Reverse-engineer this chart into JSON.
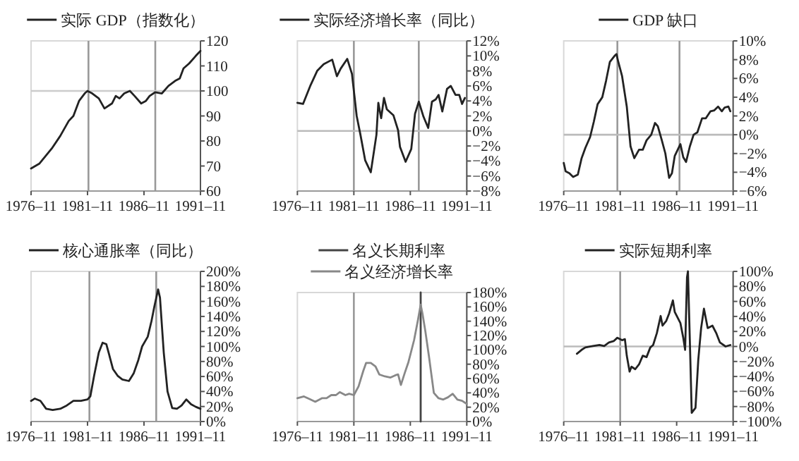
{
  "chart_data": [
    {
      "type": "line",
      "legend": "top",
      "xlim": [
        "1976-11",
        "1991-11"
      ],
      "ylim": [
        60,
        120
      ],
      "xticks": [
        {
          "value": "1976-11",
          "label": "1976–11"
        },
        {
          "value": "1981-11",
          "label": "1981–11"
        },
        {
          "value": "1986-11",
          "label": "1986–11"
        },
        {
          "value": "1991-11",
          "label": "1991–11"
        }
      ],
      "yticks": [
        60,
        70,
        80,
        90,
        100,
        110,
        120
      ],
      "ref_lines": [
        {
          "axis": "x",
          "value": "1981-12",
          "color": "#999999"
        },
        {
          "axis": "x",
          "value": "1987-11",
          "color": "#999999"
        },
        {
          "axis": "y",
          "value": 100,
          "color": "#cccccc"
        }
      ],
      "series": [
        {
          "name": "实际 GDP（指数化）",
          "color": "#222222",
          "x": [
            "1976-11",
            "1977-08",
            "1978-09",
            "1979-06",
            "1980-03",
            "1980-08",
            "1981-02",
            "1981-08",
            "1981-11",
            "1982-04",
            "1982-11",
            "1983-05",
            "1984-01",
            "1984-05",
            "1984-09",
            "1985-02",
            "1985-08",
            "1986-01",
            "1986-08",
            "1987-01",
            "1987-05",
            "1987-11",
            "1988-06",
            "1989-01",
            "1989-08",
            "1990-01",
            "1990-05",
            "1990-11",
            "1991-06",
            "1991-11"
          ],
          "values": [
            69,
            71,
            77,
            82,
            88,
            90,
            96,
            99,
            100,
            99,
            97,
            93,
            95,
            98,
            97,
            99,
            100,
            98,
            95,
            96,
            98,
            99.5,
            99,
            102,
            104,
            105,
            109,
            111,
            114,
            116
          ]
        }
      ]
    },
    {
      "type": "line",
      "legend": "top",
      "xlim": [
        "1976-11",
        "1991-11"
      ],
      "ylim": [
        -8,
        12
      ],
      "xticks": [
        {
          "value": "1976-11",
          "label": "1976–11"
        },
        {
          "value": "1981-11",
          "label": "1981–11"
        },
        {
          "value": "1986-11",
          "label": "1986–11"
        },
        {
          "value": "1991-11",
          "label": "1991–11"
        }
      ],
      "yticks": [
        {
          "value": 12,
          "label": "12%"
        },
        {
          "value": 10,
          "label": "10%"
        },
        {
          "value": 8,
          "label": "8%"
        },
        {
          "value": 6,
          "label": "6%"
        },
        {
          "value": 4,
          "label": "4%"
        },
        {
          "value": 2,
          "label": "2%"
        },
        {
          "value": 0,
          "label": "0%"
        },
        {
          "value": -2,
          "label": "−2%"
        },
        {
          "value": -4,
          "label": "−4%"
        },
        {
          "value": -6,
          "label": "−6%"
        },
        {
          "value": -8,
          "label": "−8%"
        }
      ],
      "ref_lines": [
        {
          "axis": "x",
          "value": "1981-11",
          "color": "#999999"
        },
        {
          "axis": "x",
          "value": "1987-08",
          "color": "#999999"
        },
        {
          "axis": "y",
          "value": 0,
          "color": "#bbbbbb"
        }
      ],
      "series": [
        {
          "name": "实际经济增长率（同比）",
          "color": "#222222",
          "x": [
            "1976-11",
            "1977-05",
            "1978-01",
            "1978-08",
            "1979-03",
            "1979-12",
            "1980-05",
            "1980-09",
            "1981-04",
            "1981-09",
            "1982-02",
            "1982-06",
            "1982-11",
            "1983-05",
            "1983-11",
            "1984-01",
            "1984-04",
            "1984-07",
            "1984-10",
            "1985-05",
            "1985-10",
            "1985-12",
            "1986-06",
            "1986-12",
            "1987-04",
            "1987-08",
            "1988-01",
            "1988-06",
            "1988-10",
            "1989-02",
            "1989-05",
            "1989-09",
            "1990-02",
            "1990-06",
            "1990-11",
            "1991-03",
            "1991-06",
            "1991-09"
          ],
          "values": [
            3.75,
            3.6,
            6.1,
            8,
            8.9,
            9.5,
            7.3,
            8.3,
            9.6,
            7.6,
            2,
            -0.5,
            -3.9,
            -5.5,
            -0.5,
            3.75,
            1.7,
            4.4,
            2.9,
            2.1,
            0.1,
            -2.1,
            -4.1,
            -2.4,
            2.3,
            3.9,
            1.9,
            0.4,
            3.9,
            4.2,
            4.8,
            2.6,
            5.6,
            6,
            4.8,
            4.8,
            3.6,
            4.4
          ]
        }
      ]
    },
    {
      "type": "line",
      "legend": "top",
      "xlim": [
        "1976-11",
        "1991-11"
      ],
      "ylim": [
        -6,
        10
      ],
      "xticks": [
        {
          "value": "1976-11",
          "label": "1976–11"
        },
        {
          "value": "1981-11",
          "label": "1981–11"
        },
        {
          "value": "1986-11",
          "label": "1986–11"
        },
        {
          "value": "1991-11",
          "label": "1991–11"
        }
      ],
      "yticks": [
        {
          "value": 10,
          "label": "10%"
        },
        {
          "value": 8,
          "label": "8%"
        },
        {
          "value": 6,
          "label": "6%"
        },
        {
          "value": 4,
          "label": "4%"
        },
        {
          "value": 2,
          "label": "2%"
        },
        {
          "value": 0,
          "label": "0%"
        },
        {
          "value": -2,
          "label": "−2%"
        },
        {
          "value": -4,
          "label": "−4%"
        },
        {
          "value": -6,
          "label": "−6%"
        }
      ],
      "ref_lines": [
        {
          "axis": "x",
          "value": "1981-08",
          "color": "#999999"
        },
        {
          "axis": "x",
          "value": "1987-02",
          "color": "#999999"
        },
        {
          "axis": "y",
          "value": 0,
          "color": "#bbbbbb"
        }
      ],
      "series": [
        {
          "name": "GDP 缺口",
          "color": "#222222",
          "x": [
            "1976-11",
            "1977-01",
            "1977-05",
            "1977-09",
            "1978-02",
            "1978-06",
            "1978-10",
            "1979-03",
            "1979-07",
            "1979-11",
            "1980-04",
            "1980-08",
            "1980-12",
            "1981-05",
            "1981-07",
            "1981-09",
            "1982-01",
            "1982-06",
            "1982-10",
            "1983-02",
            "1983-07",
            "1983-11",
            "1984-03",
            "1984-08",
            "1984-12",
            "1985-03",
            "1985-07",
            "1985-11",
            "1986-03",
            "1986-06",
            "1986-09",
            "1987-03",
            "1987-06",
            "1987-09",
            "1988-01",
            "1988-05",
            "1988-09",
            "1989-02",
            "1989-06",
            "1989-11",
            "1990-03",
            "1990-07",
            "1990-11",
            "1991-02",
            "1991-06",
            "1991-08"
          ],
          "values": [
            -3,
            -3.9,
            -4.1,
            -4.5,
            -4.25,
            -2.5,
            -1.4,
            -0.25,
            1.4,
            3.25,
            4,
            5.75,
            7.75,
            8.4,
            8.6,
            7.75,
            6.25,
            3,
            -1.25,
            -2.5,
            -1.6,
            -1.6,
            -0.6,
            0,
            1.25,
            0.9,
            -0.5,
            -2,
            -4.6,
            -4.1,
            -2.25,
            -1,
            -2.4,
            -2.9,
            -1.25,
            0,
            0.25,
            1.75,
            1.75,
            2.5,
            2.6,
            3,
            2.5,
            2.9,
            3,
            2.5
          ]
        }
      ]
    },
    {
      "type": "line",
      "legend": "top",
      "xlim": [
        "1976-11",
        "1991-11"
      ],
      "ylim": [
        0,
        200
      ],
      "xticks": [
        {
          "value": "1976-11",
          "label": "1976–11"
        },
        {
          "value": "1981-11",
          "label": "1981–11"
        },
        {
          "value": "1986-11",
          "label": "1986–11"
        },
        {
          "value": "1991-11",
          "label": "1991–11"
        }
      ],
      "yticks": [
        {
          "value": 200,
          "label": "200%"
        },
        {
          "value": 180,
          "label": "180%"
        },
        {
          "value": 160,
          "label": "160%"
        },
        {
          "value": 140,
          "label": "140%"
        },
        {
          "value": 120,
          "label": "120%"
        },
        {
          "value": 100,
          "label": "100%"
        },
        {
          "value": 80,
          "label": "80%"
        },
        {
          "value": 60,
          "label": "60%"
        },
        {
          "value": 40,
          "label": "40%"
        },
        {
          "value": 20,
          "label": "20%"
        },
        {
          "value": 0,
          "label": "0%"
        }
      ],
      "ref_lines": [
        {
          "axis": "x",
          "value": "1982-01",
          "color": "#999999"
        },
        {
          "axis": "x",
          "value": "1987-12",
          "color": "#999999"
        }
      ],
      "series": [
        {
          "name": "核心通胀率（同比）",
          "color": "#222222",
          "x": [
            "1976-11",
            "1977-03",
            "1977-09",
            "1978-03",
            "1978-10",
            "1979-06",
            "1980-01",
            "1980-08",
            "1981-04",
            "1981-11",
            "1982-02",
            "1982-06",
            "1982-11",
            "1983-03",
            "1983-07",
            "1983-10",
            "1984-02",
            "1984-07",
            "1984-12",
            "1985-07",
            "1985-12",
            "1986-05",
            "1986-09",
            "1987-03",
            "1987-07",
            "1987-10",
            "1988-02",
            "1988-04",
            "1988-08",
            "1988-12",
            "1989-05",
            "1989-10",
            "1990-03",
            "1990-08",
            "1991-01",
            "1991-06",
            "1991-11"
          ],
          "values": [
            27.5,
            30.6,
            27.5,
            17,
            15.3,
            17,
            21.4,
            27.5,
            27.5,
            29.4,
            33.6,
            61,
            92,
            105,
            103,
            89,
            70,
            61,
            56,
            54,
            64,
            82,
            100,
            113,
            134,
            153,
            176,
            165,
            92,
            40,
            18,
            17,
            21.4,
            29.4,
            23,
            19.6,
            17
          ]
        }
      ]
    },
    {
      "type": "line",
      "legend": "top",
      "xlim": [
        "1976-11",
        "1991-11"
      ],
      "ylim": [
        0,
        180
      ],
      "xticks": [
        {
          "value": "1976-11",
          "label": "1976–11"
        },
        {
          "value": "1981-11",
          "label": "1981–11"
        },
        {
          "value": "1986-11",
          "label": "1986–11"
        },
        {
          "value": "1991-11",
          "label": "1991–11"
        }
      ],
      "yticks": [
        {
          "value": 180,
          "label": "180%"
        },
        {
          "value": 160,
          "label": "160%"
        },
        {
          "value": 140,
          "label": "140%"
        },
        {
          "value": 120,
          "label": "120%"
        },
        {
          "value": 100,
          "label": "100%"
        },
        {
          "value": 80,
          "label": "80%"
        },
        {
          "value": 60,
          "label": "60%"
        },
        {
          "value": 40,
          "label": "40%"
        },
        {
          "value": 20,
          "label": "20%"
        },
        {
          "value": 0,
          "label": "0%"
        }
      ],
      "ref_lines": [
        {
          "axis": "x",
          "value": "1981-11",
          "color": "#999999"
        }
      ],
      "series": [
        {
          "name": "名义长期利率",
          "color": "#444444",
          "x": [
            "1987-10",
            "1987-10"
          ],
          "values": [
            0,
            180
          ]
        },
        {
          "name": "名义经济增长率",
          "color": "#888888",
          "x": [
            "1976-11",
            "1977-06",
            "1978-01",
            "1978-06",
            "1979-01",
            "1979-06",
            "1979-11",
            "1980-04",
            "1980-08",
            "1981-02",
            "1981-06",
            "1981-11",
            "1982-04",
            "1982-09",
            "1982-12",
            "1983-05",
            "1983-10",
            "1984-02",
            "1984-08",
            "1985-02",
            "1985-07",
            "1985-10",
            "1986-01",
            "1986-05",
            "1986-09",
            "1987-03",
            "1987-07",
            "1987-10",
            "1987-12",
            "1988-03",
            "1988-07",
            "1988-12",
            "1989-05",
            "1989-10",
            "1990-03",
            "1990-08",
            "1991-01",
            "1991-06",
            "1991-11"
          ],
          "values": [
            32.5,
            35,
            30.7,
            27.6,
            32.5,
            32.5,
            36.9,
            36.9,
            41,
            36.9,
            38.7,
            36.9,
            49,
            70.6,
            81.7,
            81.7,
            76.8,
            65.7,
            63,
            61.4,
            64.5,
            65.7,
            51,
            67.5,
            82.9,
            113.6,
            141,
            163,
            150,
            125.8,
            89,
            40,
            32.5,
            30.7,
            33.8,
            38.7,
            30.7,
            28.9,
            24.6
          ]
        }
      ]
    },
    {
      "type": "line",
      "legend": "top",
      "xlim": [
        "1976-11",
        "1991-11"
      ],
      "ylim": [
        -100,
        100
      ],
      "xticks": [
        {
          "value": "1976-11",
          "label": "1976–11"
        },
        {
          "value": "1981-11",
          "label": "1981–11"
        },
        {
          "value": "1986-11",
          "label": "1986–11"
        },
        {
          "value": "1991-11",
          "label": "1991–11"
        }
      ],
      "yticks": [
        {
          "value": 100,
          "label": "100%"
        },
        {
          "value": 80,
          "label": "80%"
        },
        {
          "value": 60,
          "label": "60%"
        },
        {
          "value": 40,
          "label": "40%"
        },
        {
          "value": 20,
          "label": "20%"
        },
        {
          "value": 0,
          "label": "0%"
        },
        {
          "value": -20,
          "label": "−20%"
        },
        {
          "value": -40,
          "label": "−40%"
        },
        {
          "value": -60,
          "label": "−60%"
        },
        {
          "value": -80,
          "label": "−80%"
        },
        {
          "value": -100,
          "label": "−100%"
        }
      ],
      "ref_lines": [
        {
          "axis": "x",
          "value": "1981-11",
          "color": "#999999"
        },
        {
          "axis": "y",
          "value": 0,
          "color": "#bbbbbb"
        }
      ],
      "series": [
        {
          "name": "实际短期利率",
          "color": "#222222",
          "x": [
            "1978-01",
            "1978-06",
            "1978-10",
            "1979-06",
            "1980-01",
            "1980-06",
            "1980-11",
            "1981-04",
            "1981-08",
            "1982-01",
            "1982-04",
            "1982-06",
            "1982-09",
            "1982-11",
            "1983-03",
            "1983-07",
            "1983-11",
            "1984-03",
            "1984-07",
            "1984-10",
            "1985-02",
            "1985-06",
            "1985-08",
            "1985-12",
            "1986-03",
            "1986-07",
            "1986-09",
            "1987-03",
            "1987-06",
            "1987-08",
            "1987-10",
            "1987-11",
            "1988-01",
            "1988-03",
            "1988-07",
            "1988-10",
            "1989-01",
            "1989-04",
            "1989-08",
            "1990-01",
            "1990-05",
            "1990-09",
            "1991-03",
            "1991-08"
          ],
          "values": [
            -9.7,
            -4.5,
            -1.3,
            0.6,
            1.9,
            0.6,
            5.2,
            7.1,
            11.6,
            8.4,
            9.7,
            -12.3,
            -33.5,
            -27,
            -30.3,
            -23.9,
            -12.3,
            -14.2,
            -1.3,
            1.9,
            18,
            40.6,
            27.7,
            34.2,
            43.9,
            61.3,
            45.8,
            31,
            11.6,
            -4.5,
            92,
            100,
            8.4,
            -88.4,
            -81.9,
            -17.4,
            24.5,
            50.3,
            24.5,
            27.7,
            18,
            5.2,
            0,
            1.9
          ]
        }
      ]
    }
  ]
}
